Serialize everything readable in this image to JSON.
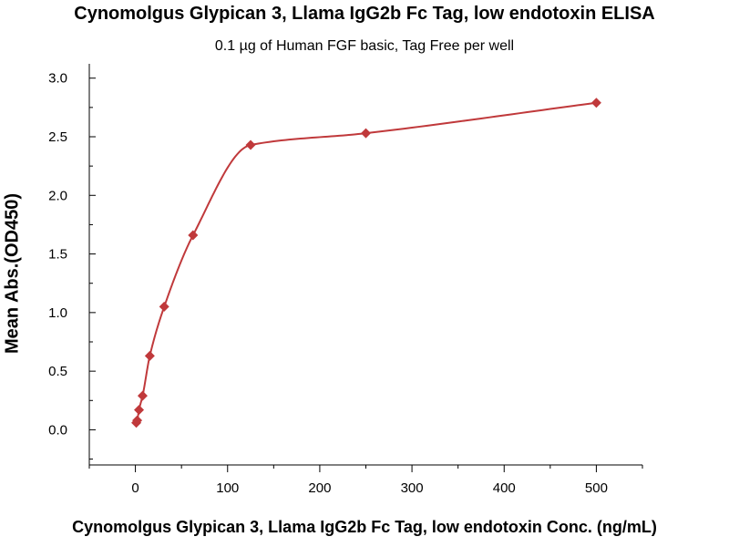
{
  "chart_data": {
    "type": "scatter",
    "title": "Cynomolgus Glypican 3, Llama IgG2b Fc Tag, low endotoxin ELISA",
    "subtitle": "0.1 µg of Human FGF basic, Tag Free per well",
    "xlabel": "Cynomolgus Glypican 3, Llama IgG2b Fc Tag, low endotoxin Conc. (ng/mL)",
    "ylabel": "Mean Abs.(OD450)",
    "xlim": [
      -50,
      550
    ],
    "ylim": [
      -0.3,
      3.2
    ],
    "xticks": [
      0,
      100,
      200,
      300,
      400,
      500
    ],
    "yticks": [
      0.0,
      0.5,
      1.0,
      1.5,
      2.0,
      2.5,
      3.0
    ],
    "grid": false,
    "series": [
      {
        "x": [
          0.977,
          1.95,
          3.9,
          7.8,
          15.6,
          31.25,
          62.5,
          125,
          250,
          500
        ],
        "y": [
          0.06,
          0.08,
          0.17,
          0.29,
          0.63,
          1.05,
          1.66,
          2.43,
          2.53,
          2.79
        ],
        "color": "#c0393b",
        "marker": "diamond",
        "fit_curve": true
      }
    ]
  }
}
